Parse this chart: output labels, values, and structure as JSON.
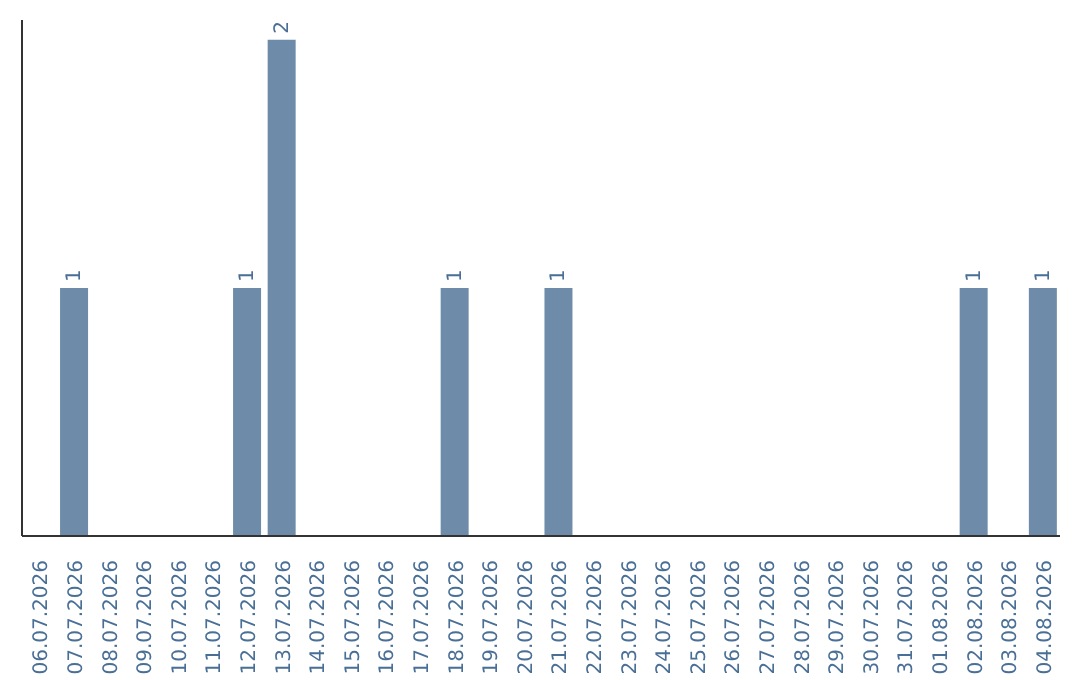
{
  "chart_data": {
    "type": "bar",
    "categories": [
      "06.07.2026",
      "07.07.2026",
      "08.07.2026",
      "09.07.2026",
      "10.07.2026",
      "11.07.2026",
      "12.07.2026",
      "13.07.2026",
      "14.07.2026",
      "15.07.2026",
      "16.07.2026",
      "17.07.2026",
      "18.07.2026",
      "19.07.2026",
      "20.07.2026",
      "21.07.2026",
      "22.07.2026",
      "23.07.2026",
      "24.07.2026",
      "25.07.2026",
      "26.07.2026",
      "27.07.2026",
      "28.07.2026",
      "29.07.2026",
      "30.07.2026",
      "31.07.2026",
      "01.08.2026",
      "02.08.2026",
      "03.08.2026",
      "04.08.2026"
    ],
    "values": [
      0,
      1,
      0,
      0,
      0,
      0,
      1,
      2,
      0,
      0,
      0,
      0,
      1,
      0,
      0,
      1,
      0,
      0,
      0,
      0,
      0,
      0,
      0,
      0,
      0,
      0,
      0,
      1,
      0,
      1
    ],
    "value_labels": [
      null,
      "1",
      null,
      null,
      null,
      null,
      "1",
      "2",
      null,
      null,
      null,
      null,
      "1",
      null,
      null,
      "1",
      null,
      null,
      null,
      null,
      null,
      null,
      null,
      null,
      null,
      null,
      null,
      "1",
      null,
      "1"
    ],
    "color": "#6e8caa",
    "tick_labels": "x"
  }
}
